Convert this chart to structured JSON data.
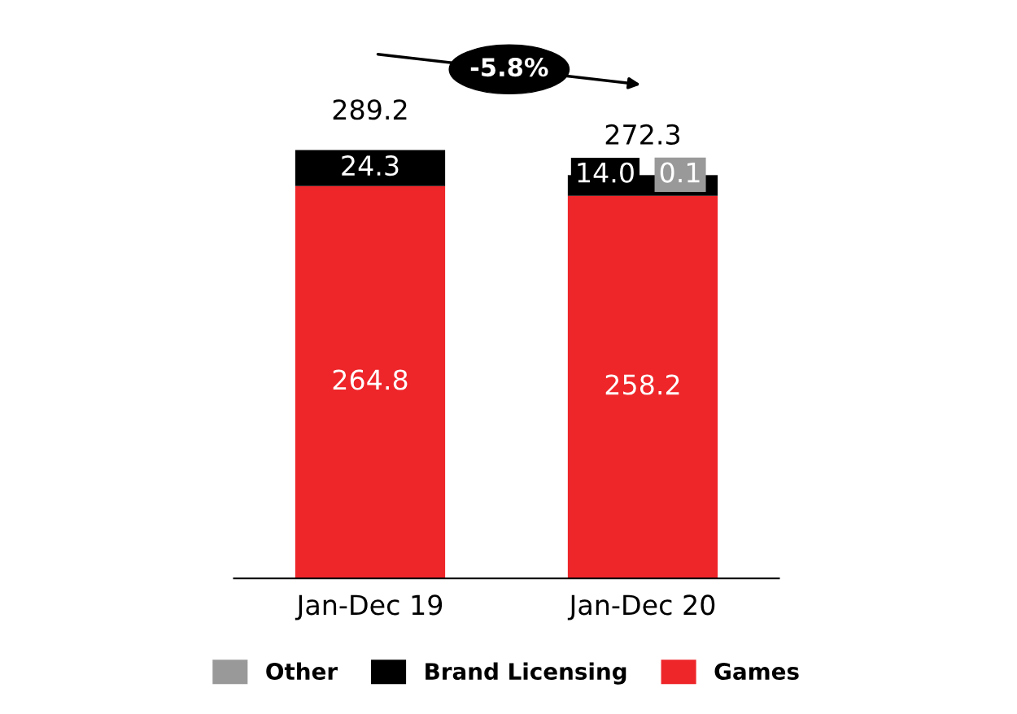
{
  "chart_data": {
    "type": "bar",
    "stacked": true,
    "categories": [
      "Jan-Dec 19",
      "Jan-Dec 20"
    ],
    "series": [
      {
        "name": "Games",
        "color": "#ee2529",
        "values": [
          264.8,
          258.2
        ],
        "value_labels": [
          "264.8",
          "258.2"
        ]
      },
      {
        "name": "Brand Licensing",
        "color": "#000000",
        "values": [
          24.3,
          14.0
        ],
        "value_labels": [
          "24.3",
          "14.0"
        ]
      },
      {
        "name": "Other",
        "color": "#999999",
        "values": [
          null,
          0.1
        ],
        "value_labels": [
          null,
          "0.1"
        ]
      }
    ],
    "totals": [
      "289.2",
      "272.3"
    ],
    "legend": "bottom",
    "annotations": [
      "-5.8%"
    ]
  }
}
